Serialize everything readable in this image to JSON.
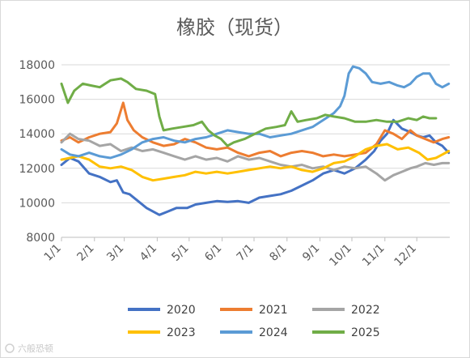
{
  "chart_data": {
    "type": "line",
    "title": "橡胶（现货）",
    "xlabel": "",
    "ylabel": "",
    "ylim": [
      8000,
      18000
    ],
    "yticks": [
      8000,
      10000,
      12000,
      14000,
      16000,
      18000
    ],
    "xlim": [
      0,
      365
    ],
    "xticks": [
      {
        "label": "1/1",
        "day": 0
      },
      {
        "label": "2/1",
        "day": 31
      },
      {
        "label": "3/1",
        "day": 59
      },
      {
        "label": "4/1",
        "day": 90
      },
      {
        "label": "5/1",
        "day": 120
      },
      {
        "label": "6/1",
        "day": 151
      },
      {
        "label": "7/1",
        "day": 181
      },
      {
        "label": "8/1",
        "day": 212
      },
      {
        "label": "9/1",
        "day": 243
      },
      {
        "label": "10/1",
        "day": 273
      },
      {
        "label": "11/1",
        "day": 304
      },
      {
        "label": "12/1",
        "day": 334
      }
    ],
    "grid": "horizontal",
    "legend_position": "bottom",
    "series": [
      {
        "name": "2020",
        "color": "#4472c4",
        "points": [
          [
            0,
            12200
          ],
          [
            8,
            12600
          ],
          [
            16,
            12400
          ],
          [
            26,
            11700
          ],
          [
            36,
            11500
          ],
          [
            46,
            11200
          ],
          [
            52,
            11300
          ],
          [
            58,
            10600
          ],
          [
            64,
            10500
          ],
          [
            72,
            10100
          ],
          [
            80,
            9700
          ],
          [
            86,
            9500
          ],
          [
            92,
            9300
          ],
          [
            100,
            9500
          ],
          [
            108,
            9700
          ],
          [
            118,
            9700
          ],
          [
            126,
            9900
          ],
          [
            136,
            10000
          ],
          [
            146,
            10100
          ],
          [
            156,
            10050
          ],
          [
            166,
            10100
          ],
          [
            176,
            10000
          ],
          [
            186,
            10300
          ],
          [
            196,
            10400
          ],
          [
            206,
            10500
          ],
          [
            216,
            10700
          ],
          [
            226,
            11000
          ],
          [
            236,
            11300
          ],
          [
            246,
            11700
          ],
          [
            256,
            11900
          ],
          [
            266,
            11700
          ],
          [
            276,
            12000
          ],
          [
            286,
            12500
          ],
          [
            294,
            13000
          ],
          [
            300,
            13600
          ],
          [
            306,
            14000
          ],
          [
            312,
            14800
          ],
          [
            320,
            14300
          ],
          [
            328,
            14100
          ],
          [
            334,
            13900
          ],
          [
            340,
            13800
          ],
          [
            346,
            13900
          ],
          [
            352,
            13500
          ],
          [
            358,
            13300
          ],
          [
            364,
            12900
          ]
        ]
      },
      {
        "name": "2021",
        "color": "#ed7d31",
        "points": [
          [
            0,
            13600
          ],
          [
            8,
            13800
          ],
          [
            16,
            13500
          ],
          [
            26,
            13800
          ],
          [
            36,
            14000
          ],
          [
            46,
            14100
          ],
          [
            52,
            14600
          ],
          [
            58,
            15800
          ],
          [
            62,
            14800
          ],
          [
            68,
            14200
          ],
          [
            76,
            13800
          ],
          [
            86,
            13500
          ],
          [
            96,
            13300
          ],
          [
            106,
            13400
          ],
          [
            116,
            13700
          ],
          [
            126,
            13500
          ],
          [
            136,
            13200
          ],
          [
            146,
            13100
          ],
          [
            156,
            13200
          ],
          [
            166,
            12900
          ],
          [
            176,
            12700
          ],
          [
            186,
            12900
          ],
          [
            196,
            13000
          ],
          [
            206,
            12700
          ],
          [
            216,
            12900
          ],
          [
            226,
            13000
          ],
          [
            236,
            12900
          ],
          [
            246,
            12700
          ],
          [
            256,
            12800
          ],
          [
            266,
            12700
          ],
          [
            276,
            12800
          ],
          [
            286,
            12900
          ],
          [
            296,
            13400
          ],
          [
            304,
            14200
          ],
          [
            312,
            14000
          ],
          [
            320,
            13700
          ],
          [
            328,
            14200
          ],
          [
            334,
            13900
          ],
          [
            342,
            13700
          ],
          [
            350,
            13500
          ],
          [
            358,
            13700
          ],
          [
            364,
            13800
          ]
        ]
      },
      {
        "name": "2022",
        "color": "#a5a5a5",
        "points": [
          [
            0,
            13500
          ],
          [
            8,
            14000
          ],
          [
            16,
            13700
          ],
          [
            26,
            13600
          ],
          [
            36,
            13300
          ],
          [
            46,
            13400
          ],
          [
            56,
            13000
          ],
          [
            66,
            13200
          ],
          [
            76,
            13000
          ],
          [
            86,
            13100
          ],
          [
            96,
            12900
          ],
          [
            106,
            12700
          ],
          [
            116,
            12500
          ],
          [
            126,
            12700
          ],
          [
            136,
            12500
          ],
          [
            146,
            12600
          ],
          [
            156,
            12400
          ],
          [
            166,
            12700
          ],
          [
            176,
            12500
          ],
          [
            186,
            12600
          ],
          [
            196,
            12400
          ],
          [
            206,
            12200
          ],
          [
            216,
            12100
          ],
          [
            226,
            12200
          ],
          [
            236,
            12000
          ],
          [
            246,
            12100
          ],
          [
            256,
            11900
          ],
          [
            266,
            12100
          ],
          [
            276,
            12000
          ],
          [
            286,
            12100
          ],
          [
            296,
            11700
          ],
          [
            304,
            11300
          ],
          [
            312,
            11600
          ],
          [
            320,
            11800
          ],
          [
            328,
            12000
          ],
          [
            334,
            12100
          ],
          [
            342,
            12300
          ],
          [
            350,
            12200
          ],
          [
            358,
            12300
          ],
          [
            364,
            12300
          ]
        ]
      },
      {
        "name": "2023",
        "color": "#ffc000",
        "points": [
          [
            0,
            12500
          ],
          [
            8,
            12600
          ],
          [
            16,
            12700
          ],
          [
            26,
            12500
          ],
          [
            36,
            12100
          ],
          [
            46,
            12000
          ],
          [
            56,
            12100
          ],
          [
            66,
            11900
          ],
          [
            76,
            11500
          ],
          [
            86,
            11300
          ],
          [
            96,
            11400
          ],
          [
            106,
            11500
          ],
          [
            116,
            11600
          ],
          [
            126,
            11800
          ],
          [
            136,
            11700
          ],
          [
            146,
            11800
          ],
          [
            156,
            11700
          ],
          [
            166,
            11800
          ],
          [
            176,
            11900
          ],
          [
            186,
            12000
          ],
          [
            196,
            12100
          ],
          [
            206,
            12000
          ],
          [
            216,
            12100
          ],
          [
            226,
            11900
          ],
          [
            236,
            11800
          ],
          [
            246,
            12000
          ],
          [
            256,
            12300
          ],
          [
            266,
            12400
          ],
          [
            276,
            12700
          ],
          [
            286,
            13100
          ],
          [
            296,
            13300
          ],
          [
            306,
            13400
          ],
          [
            316,
            13100
          ],
          [
            326,
            13200
          ],
          [
            336,
            12900
          ],
          [
            344,
            12500
          ],
          [
            352,
            12600
          ],
          [
            358,
            12800
          ],
          [
            364,
            13000
          ]
        ]
      },
      {
        "name": "2024",
        "color": "#5b9bd5",
        "points": [
          [
            0,
            13100
          ],
          [
            8,
            12800
          ],
          [
            16,
            12700
          ],
          [
            26,
            12900
          ],
          [
            36,
            12700
          ],
          [
            46,
            12600
          ],
          [
            56,
            12800
          ],
          [
            66,
            13100
          ],
          [
            76,
            13500
          ],
          [
            86,
            13700
          ],
          [
            96,
            13800
          ],
          [
            106,
            13600
          ],
          [
            116,
            13500
          ],
          [
            126,
            13700
          ],
          [
            136,
            13800
          ],
          [
            146,
            14000
          ],
          [
            156,
            14200
          ],
          [
            166,
            14100
          ],
          [
            176,
            14000
          ],
          [
            186,
            14000
          ],
          [
            196,
            13800
          ],
          [
            206,
            13900
          ],
          [
            216,
            14000
          ],
          [
            226,
            14200
          ],
          [
            236,
            14400
          ],
          [
            246,
            14800
          ],
          [
            256,
            15200
          ],
          [
            262,
            15600
          ],
          [
            266,
            16200
          ],
          [
            270,
            17500
          ],
          [
            274,
            17900
          ],
          [
            280,
            17800
          ],
          [
            286,
            17500
          ],
          [
            292,
            17000
          ],
          [
            300,
            16900
          ],
          [
            308,
            17000
          ],
          [
            316,
            16800
          ],
          [
            322,
            16700
          ],
          [
            328,
            16900
          ],
          [
            334,
            17300
          ],
          [
            340,
            17500
          ],
          [
            346,
            17500
          ],
          [
            352,
            16900
          ],
          [
            358,
            16700
          ],
          [
            364,
            16900
          ]
        ]
      },
      {
        "name": "2025",
        "color": "#70ad47",
        "points": [
          [
            0,
            16900
          ],
          [
            6,
            15800
          ],
          [
            12,
            16500
          ],
          [
            20,
            16900
          ],
          [
            28,
            16800
          ],
          [
            36,
            16700
          ],
          [
            46,
            17100
          ],
          [
            56,
            17200
          ],
          [
            62,
            17000
          ],
          [
            70,
            16600
          ],
          [
            80,
            16500
          ],
          [
            88,
            16300
          ],
          [
            92,
            15000
          ],
          [
            96,
            14200
          ],
          [
            104,
            14300
          ],
          [
            114,
            14400
          ],
          [
            124,
            14500
          ],
          [
            132,
            14700
          ],
          [
            138,
            14200
          ],
          [
            144,
            13900
          ],
          [
            150,
            13700
          ],
          [
            156,
            13300
          ],
          [
            162,
            13500
          ],
          [
            172,
            13700
          ],
          [
            182,
            14000
          ],
          [
            192,
            14300
          ],
          [
            202,
            14400
          ],
          [
            210,
            14500
          ],
          [
            216,
            15300
          ],
          [
            222,
            14700
          ],
          [
            230,
            14800
          ],
          [
            240,
            14900
          ],
          [
            248,
            15100
          ],
          [
            256,
            15000
          ],
          [
            266,
            14900
          ],
          [
            276,
            14700
          ],
          [
            286,
            14700
          ],
          [
            296,
            14800
          ],
          [
            306,
            14700
          ],
          [
            316,
            14700
          ],
          [
            326,
            14900
          ],
          [
            334,
            14800
          ],
          [
            340,
            15000
          ],
          [
            346,
            14900
          ],
          [
            352,
            14900
          ]
        ]
      }
    ],
    "watermark": "六般恐顿"
  }
}
